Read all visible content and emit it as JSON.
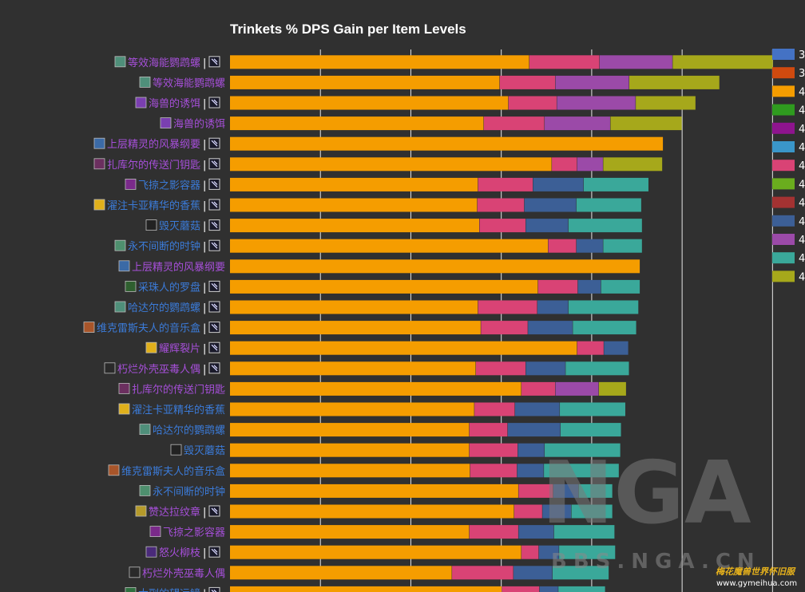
{
  "chart_data": {
    "type": "bar",
    "orientation": "horizontal",
    "stacked": true,
    "title": "Trinkets % DPS Gain per Item Levels",
    "xlabel": "",
    "ylabel": "",
    "grid": true,
    "legend_position": "right",
    "series_colors": [
      "#f59d00",
      "#d94375",
      "#9b4aa8",
      "#a6a81b",
      "#3c5f96",
      "#3aa89a"
    ],
    "legend": [
      {
        "color": "#4472c4",
        "label": "3"
      },
      {
        "color": "#d04a0f",
        "label": "3"
      },
      {
        "color": "#f59d00",
        "label": "4"
      },
      {
        "color": "#2f9b1f",
        "label": "4"
      },
      {
        "color": "#8e148e",
        "label": "4"
      },
      {
        "color": "#3a96c9",
        "label": "4"
      },
      {
        "color": "#d94375",
        "label": "4"
      },
      {
        "color": "#6aad1e",
        "label": "4"
      },
      {
        "color": "#a33232",
        "label": "4"
      },
      {
        "color": "#3c5f96",
        "label": "4"
      },
      {
        "color": "#9b4aa8",
        "label": "4"
      },
      {
        "color": "#3aa89a",
        "label": "4"
      },
      {
        "color": "#a6a81b",
        "label": "4"
      }
    ],
    "categories": [
      {
        "name": "等效海能鹦鹉螺",
        "sep": true,
        "color": "purple",
        "icon": "nautilus"
      },
      {
        "name": "等效海能鹦鹉螺",
        "sep": false,
        "color": "purple",
        "icon": "nautilus"
      },
      {
        "name": "海兽的诱饵",
        "sep": true,
        "color": "purple",
        "icon": "bait"
      },
      {
        "name": "海兽的诱饵",
        "sep": false,
        "color": "purple",
        "icon": "bait"
      },
      {
        "name": "上层精灵的风暴纲要",
        "sep": true,
        "color": "purple",
        "icon": "compendium"
      },
      {
        "name": "扎库尔的传送门钥匙",
        "sep": true,
        "color": "purple",
        "icon": "key"
      },
      {
        "name": "飞掠之影容器",
        "sep": true,
        "color": "blue",
        "icon": "vessel"
      },
      {
        "name": "濯注卡亚精华的香蕉",
        "sep": true,
        "color": "blue",
        "icon": "banana"
      },
      {
        "name": "毁灭蘑菇",
        "sep": true,
        "color": "blue",
        "icon": "mushroom"
      },
      {
        "name": "永不间断的时钟",
        "sep": true,
        "color": "blue",
        "icon": "clock"
      },
      {
        "name": "上层精灵的风暴纲要",
        "sep": false,
        "color": "purple",
        "icon": "compendium"
      },
      {
        "name": "采珠人的罗盘",
        "sep": true,
        "color": "blue",
        "icon": "compass"
      },
      {
        "name": "哈达尔的鹦鹉螺",
        "sep": true,
        "color": "blue",
        "icon": "nautilus"
      },
      {
        "name": "维克雷斯夫人的音乐盒",
        "sep": true,
        "color": "blue",
        "icon": "musicbox"
      },
      {
        "name": "耀辉裂片",
        "sep": true,
        "color": "purple",
        "icon": "shard"
      },
      {
        "name": "朽烂外壳巫毒人偶",
        "sep": true,
        "color": "purple",
        "icon": "doll"
      },
      {
        "name": "扎库尔的传送门钥匙",
        "sep": false,
        "color": "purple",
        "icon": "key"
      },
      {
        "name": "濯注卡亚精华的香蕉",
        "sep": false,
        "color": "blue",
        "icon": "banana"
      },
      {
        "name": "哈达尔的鹦鹉螺",
        "sep": false,
        "color": "blue",
        "icon": "nautilus"
      },
      {
        "name": "毁灭蘑菇",
        "sep": false,
        "color": "blue",
        "icon": "mushroom"
      },
      {
        "name": "维克雷斯夫人的音乐盒",
        "sep": false,
        "color": "blue",
        "icon": "musicbox"
      },
      {
        "name": "永不间断的时钟",
        "sep": false,
        "color": "blue",
        "icon": "clock"
      },
      {
        "name": "赞达拉纹章",
        "sep": true,
        "color": "purple",
        "icon": "insignia"
      },
      {
        "name": "飞掠之影容器",
        "sep": false,
        "color": "purple",
        "icon": "vessel"
      },
      {
        "name": "怒火柳枝",
        "sep": true,
        "color": "purple",
        "icon": "branch"
      },
      {
        "name": "朽烂外壳巫毒人偶",
        "sep": false,
        "color": "purple",
        "icon": "doll"
      },
      {
        "name": "大副的望远镜",
        "sep": true,
        "color": "blue",
        "icon": "spyglass"
      }
    ],
    "stacks": [
      [
        {
          "s": 0,
          "v": 8.28
        },
        {
          "s": 1,
          "v": 1.94
        },
        {
          "s": 2,
          "v": 2.02
        },
        {
          "s": 3,
          "v": 2.78
        }
      ],
      [
        {
          "s": 0,
          "v": 7.46
        },
        {
          "s": 1,
          "v": 1.54
        },
        {
          "s": 2,
          "v": 2.04
        },
        {
          "s": 3,
          "v": 2.5
        }
      ],
      [
        {
          "s": 0,
          "v": 7.7
        },
        {
          "s": 1,
          "v": 1.34
        },
        {
          "s": 2,
          "v": 2.18
        },
        {
          "s": 3,
          "v": 1.66
        }
      ],
      [
        {
          "s": 0,
          "v": 7.02
        },
        {
          "s": 1,
          "v": 1.68
        },
        {
          "s": 2,
          "v": 1.82
        },
        {
          "s": 3,
          "v": 1.98
        }
      ],
      [
        {
          "s": 0,
          "v": 11.98
        }
      ],
      [
        {
          "s": 0,
          "v": 8.9
        },
        {
          "s": 1,
          "v": 0.7
        },
        {
          "s": 2,
          "v": 0.72
        },
        {
          "s": 3,
          "v": 1.64
        }
      ],
      [
        {
          "s": 0,
          "v": 6.86
        },
        {
          "s": 1,
          "v": 1.52
        },
        {
          "s": 4,
          "v": 1.4
        },
        {
          "s": 5,
          "v": 1.8
        }
      ],
      [
        {
          "s": 0,
          "v": 6.84
        },
        {
          "s": 1,
          "v": 1.3
        },
        {
          "s": 4,
          "v": 1.44
        },
        {
          "s": 5,
          "v": 1.8
        }
      ],
      [
        {
          "s": 0,
          "v": 6.9
        },
        {
          "s": 1,
          "v": 1.28
        },
        {
          "s": 4,
          "v": 1.18
        },
        {
          "s": 5,
          "v": 2.04
        }
      ],
      [
        {
          "s": 0,
          "v": 8.8
        },
        {
          "s": 1,
          "v": 0.78
        },
        {
          "s": 4,
          "v": 0.74
        },
        {
          "s": 5,
          "v": 1.08
        }
      ],
      [
        {
          "s": 0,
          "v": 11.34
        }
      ],
      [
        {
          "s": 0,
          "v": 8.52
        },
        {
          "s": 1,
          "v": 1.1
        },
        {
          "s": 4,
          "v": 0.64
        },
        {
          "s": 5,
          "v": 1.08
        }
      ],
      [
        {
          "s": 0,
          "v": 6.86
        },
        {
          "s": 1,
          "v": 1.64
        },
        {
          "s": 4,
          "v": 0.86
        },
        {
          "s": 5,
          "v": 1.94
        }
      ],
      [
        {
          "s": 0,
          "v": 6.94
        },
        {
          "s": 1,
          "v": 1.3
        },
        {
          "s": 4,
          "v": 1.24
        },
        {
          "s": 5,
          "v": 1.76
        }
      ],
      [
        {
          "s": 0,
          "v": 9.6
        },
        {
          "s": 1,
          "v": 0.74
        },
        {
          "s": 4,
          "v": 0.68
        }
      ],
      [
        {
          "s": 0,
          "v": 6.8
        },
        {
          "s": 1,
          "v": 1.38
        },
        {
          "s": 4,
          "v": 1.1
        },
        {
          "s": 5,
          "v": 1.76
        }
      ],
      [
        {
          "s": 0,
          "v": 8.06
        },
        {
          "s": 1,
          "v": 0.94
        },
        {
          "s": 2,
          "v": 1.2
        },
        {
          "s": 3,
          "v": 0.76
        }
      ],
      [
        {
          "s": 0,
          "v": 6.76
        },
        {
          "s": 1,
          "v": 1.12
        },
        {
          "s": 4,
          "v": 1.24
        },
        {
          "s": 5,
          "v": 1.82
        }
      ],
      [
        {
          "s": 0,
          "v": 6.62
        },
        {
          "s": 1,
          "v": 1.06
        },
        {
          "s": 4,
          "v": 1.46
        },
        {
          "s": 5,
          "v": 1.68
        }
      ],
      [
        {
          "s": 0,
          "v": 6.62
        },
        {
          "s": 1,
          "v": 1.34
        },
        {
          "s": 4,
          "v": 0.74
        },
        {
          "s": 5,
          "v": 2.1
        }
      ],
      [
        {
          "s": 0,
          "v": 6.64
        },
        {
          "s": 1,
          "v": 1.3
        },
        {
          "s": 4,
          "v": 0.74
        },
        {
          "s": 5,
          "v": 2.08
        }
      ],
      [
        {
          "s": 0,
          "v": 7.98
        },
        {
          "s": 1,
          "v": 0.96
        },
        {
          "s": 4,
          "v": 0.7
        },
        {
          "s": 5,
          "v": 0.94
        }
      ],
      [
        {
          "s": 0,
          "v": 7.86
        },
        {
          "s": 1,
          "v": 0.78
        },
        {
          "s": 4,
          "v": 0.8
        },
        {
          "s": 5,
          "v": 1.14
        }
      ],
      [
        {
          "s": 0,
          "v": 6.62
        },
        {
          "s": 1,
          "v": 1.36
        },
        {
          "s": 4,
          "v": 0.98
        },
        {
          "s": 5,
          "v": 1.68
        }
      ],
      [
        {
          "s": 0,
          "v": 8.06
        },
        {
          "s": 1,
          "v": 0.48
        },
        {
          "s": 4,
          "v": 0.56
        },
        {
          "s": 5,
          "v": 1.56
        }
      ],
      [
        {
          "s": 0,
          "v": 6.14
        },
        {
          "s": 1,
          "v": 1.7
        },
        {
          "s": 4,
          "v": 1.08
        },
        {
          "s": 5,
          "v": 1.56
        }
      ],
      [
        {
          "s": 0,
          "v": 7.52
        },
        {
          "s": 1,
          "v": 1.04
        },
        {
          "s": 4,
          "v": 0.52
        },
        {
          "s": 5,
          "v": 1.3
        }
      ]
    ],
    "xlim": [
      0,
      15.5
    ],
    "gridlines_at": [
      2.5,
      5.0,
      7.5,
      10.0,
      12.5,
      15.0
    ]
  },
  "watermark": {
    "logo": "NGA",
    "site": "BBS.NGA.CN",
    "tagline": "梅花魔兽世界怀旧服",
    "url": "www.gymeihua.com"
  }
}
